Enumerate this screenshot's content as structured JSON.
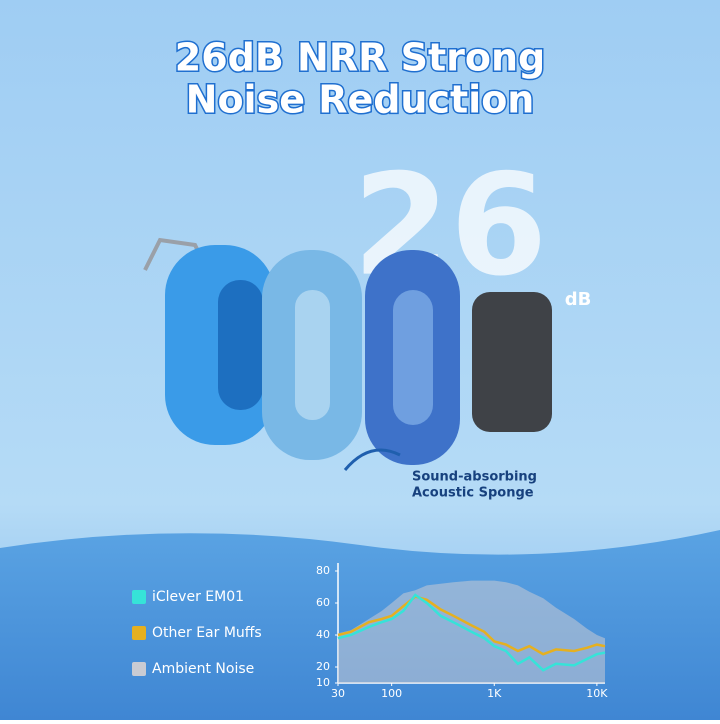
{
  "header": {
    "title": [
      "26dB NRR Strong",
      "Noise Reduction"
    ]
  },
  "badge": {
    "number": "26",
    "unit": "dB"
  },
  "caption": [
    "Sound-absorbing",
    "Acoustic Sponge"
  ],
  "chart_data": {
    "type": "line",
    "log_x": true,
    "x": [
      30,
      40,
      60,
      80,
      100,
      130,
      170,
      220,
      300,
      400,
      600,
      800,
      1000,
      1300,
      1700,
      2200,
      3000,
      4000,
      6000,
      8000,
      10000,
      12000
    ],
    "series": [
      {
        "name": "Ambient Noise",
        "color": "#c9cbd3",
        "fill": true,
        "values": [
          41,
          43,
          50,
          55,
          60,
          66,
          68,
          71,
          72,
          73,
          74,
          74,
          74,
          73,
          71,
          67,
          63,
          57,
          50,
          44,
          40,
          38
        ]
      },
      {
        "name": "Other Ear Muffs",
        "color": "#e5b020",
        "values": [
          40,
          42,
          48,
          50,
          52,
          58,
          64,
          62,
          56,
          52,
          46,
          42,
          36,
          34,
          30,
          33,
          28,
          31,
          30,
          32,
          34,
          33
        ]
      },
      {
        "name": "iClever EM01",
        "color": "#36e3d8",
        "values": [
          38,
          40,
          45,
          48,
          50,
          55,
          65,
          60,
          52,
          48,
          42,
          38,
          33,
          30,
          22,
          26,
          18,
          22,
          21,
          25,
          28,
          29
        ]
      }
    ],
    "legend_order": [
      2,
      1,
      0
    ],
    "xlim": [
      30,
      12000
    ],
    "xticks": [
      30,
      100,
      {
        "value": 1000,
        "label": "1K"
      },
      {
        "value": 10000,
        "label": "10K"
      }
    ],
    "ylim": [
      10,
      85
    ],
    "yticks": [
      10,
      20,
      40,
      60,
      80
    ]
  }
}
